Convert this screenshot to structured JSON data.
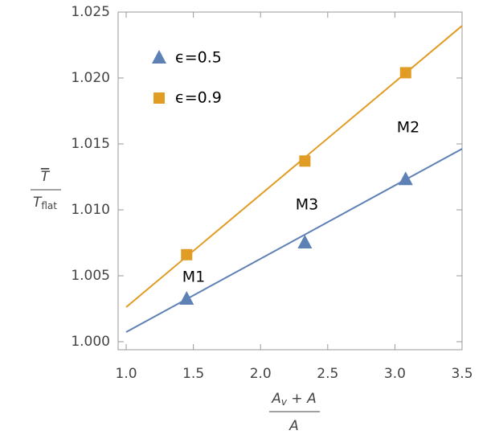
{
  "chart_data": {
    "type": "scatter",
    "xlim": [
      0.94,
      3.5
    ],
    "ylim": [
      0.99939,
      1.025
    ],
    "xticks": [
      {
        "value": 1.0,
        "label": "1.0"
      },
      {
        "value": 1.5,
        "label": "1.5"
      },
      {
        "value": 2.0,
        "label": "2.0"
      },
      {
        "value": 2.5,
        "label": "2.5"
      },
      {
        "value": 3.0,
        "label": "3.0"
      },
      {
        "value": 3.5,
        "label": "3.5"
      }
    ],
    "yticks": [
      {
        "value": 1.0,
        "label": "1.000"
      },
      {
        "value": 1.005,
        "label": "1.005"
      },
      {
        "value": 1.01,
        "label": "1.010"
      },
      {
        "value": 1.015,
        "label": "1.015"
      },
      {
        "value": 1.02,
        "label": "1.020"
      },
      {
        "value": 1.025,
        "label": "1.025"
      }
    ],
    "xlabel": {
      "numerator": "A",
      "numerator_sub": "v",
      "numerator_rest": " + A",
      "denominator": "A"
    },
    "ylabel": {
      "numerator": "T",
      "denominator": "T",
      "denominator_sub": "flat"
    },
    "series": [
      {
        "name": "ϵ=0.5",
        "color": "#5e81b5",
        "marker": "triangle",
        "x": [
          1.45,
          2.33,
          3.08
        ],
        "values": [
          1.00323,
          1.0075,
          1.0123
        ],
        "fit": {
          "x": [
            1.0,
            3.5
          ],
          "values": [
            1.00073,
            1.01463
          ]
        }
      },
      {
        "name": "ϵ=0.9",
        "color": "#e19c24",
        "marker": "square",
        "x": [
          1.45,
          2.33,
          3.08
        ],
        "values": [
          1.0066,
          1.0137,
          1.0204
        ],
        "fit": {
          "x": [
            1.0,
            3.5
          ],
          "values": [
            1.00262,
            1.02396
          ]
        }
      }
    ],
    "annotations": [
      "M1",
      "M3",
      "M2"
    ],
    "legend": "upper left"
  }
}
